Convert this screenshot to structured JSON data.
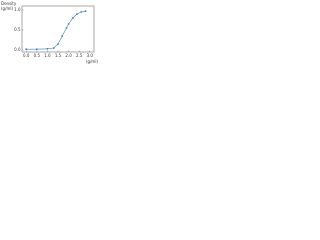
{
  "chart_data": {
    "type": "line",
    "y_label_1": "Density",
    "y_label_2": "(g/ml)",
    "x_label": "(g/ml)",
    "x": [
      0.0,
      0.5,
      1.0,
      1.3,
      1.5,
      1.7,
      1.9,
      2.0,
      2.2,
      2.4,
      2.6,
      2.8
    ],
    "series": [
      {
        "color": "#3a7fc1",
        "values": [
          0.02,
          0.02,
          0.03,
          0.05,
          0.15,
          0.35,
          0.55,
          0.65,
          0.8,
          0.9,
          0.95,
          0.97
        ]
      }
    ],
    "xlim": [
      -0.2,
      3.2
    ],
    "xticks": [
      {
        "value": 0,
        "label": "0.0"
      },
      {
        "value": 0.5,
        "label": "0.5"
      },
      {
        "value": 1,
        "label": "1.0"
      },
      {
        "value": 1.5,
        "label": "1.5"
      },
      {
        "value": 2,
        "label": "2.0"
      },
      {
        "value": 2.5,
        "label": "2.5"
      },
      {
        "value": 3,
        "label": "3.0"
      }
    ],
    "ylim": [
      -0.05,
      1.1
    ],
    "yticks": [
      {
        "value": 0,
        "label": "0.0"
      },
      {
        "value": 0.5,
        "label": "0.5"
      },
      {
        "value": 1,
        "label": "1.0"
      }
    ]
  }
}
